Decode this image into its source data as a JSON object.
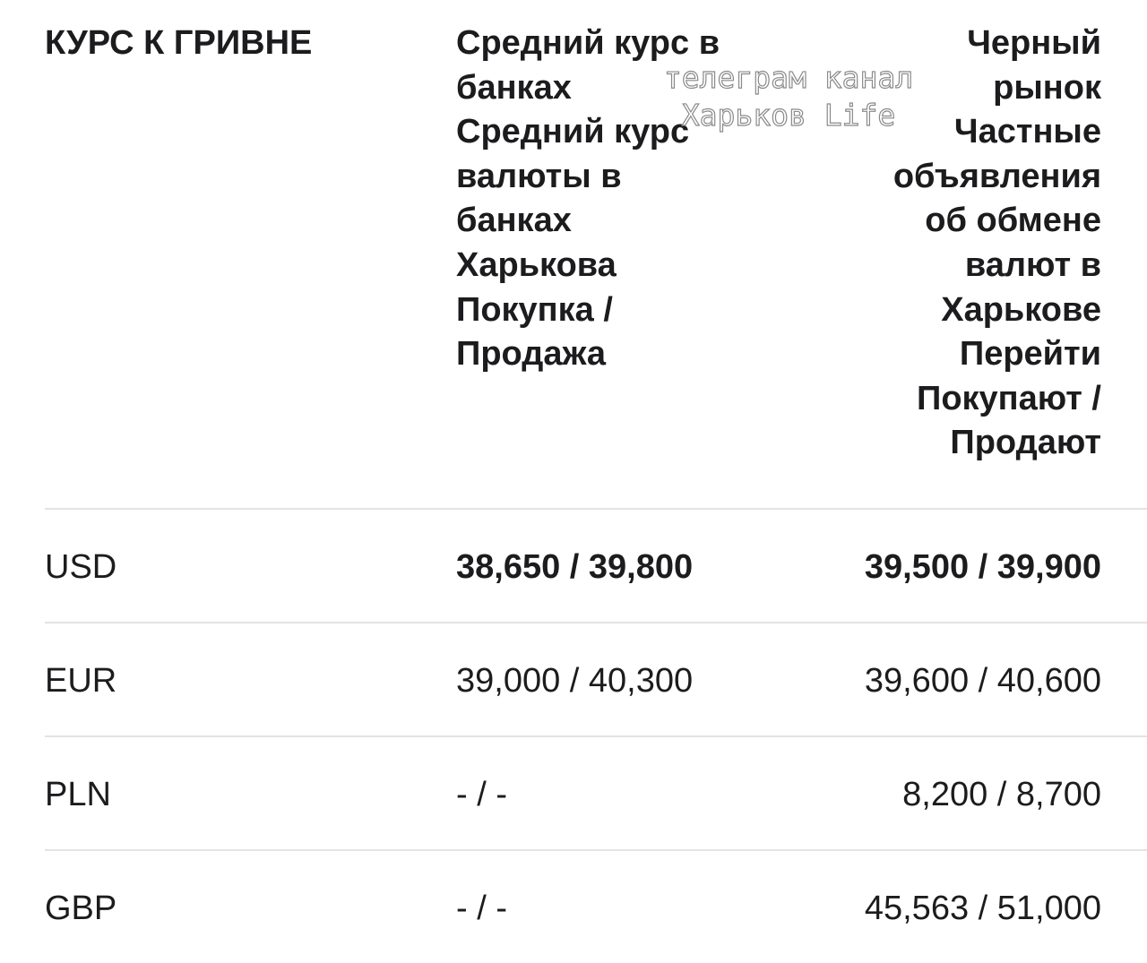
{
  "header": {
    "currency_col": "КУРС К ГРИВНЕ",
    "bank_col": {
      "title": "Средний курс в банках",
      "subtitle": "Средний курс валюты в банках Харькова",
      "rates": "Покупка / Продажа"
    },
    "black_market_col": {
      "title": "Черный рынок",
      "subtitle": "Частные объявления об обмене валют в Харькове",
      "link": "Перейти",
      "rates": "Покупают / Продают"
    }
  },
  "rows": [
    {
      "currency": "USD",
      "bank": "38,650 / 39,800",
      "market": "39,500 / 39,900"
    },
    {
      "currency": "EUR",
      "bank": "39,000 / 40,300",
      "market": "39,600 / 40,600"
    },
    {
      "currency": "PLN",
      "bank": "- / -",
      "market": "8,200 / 8,700"
    },
    {
      "currency": "GBP",
      "bank": "- / -",
      "market": "45,563 / 51,000"
    }
  ],
  "watermark": {
    "line1": "телеграм канал",
    "line2": "Харьков Life"
  }
}
